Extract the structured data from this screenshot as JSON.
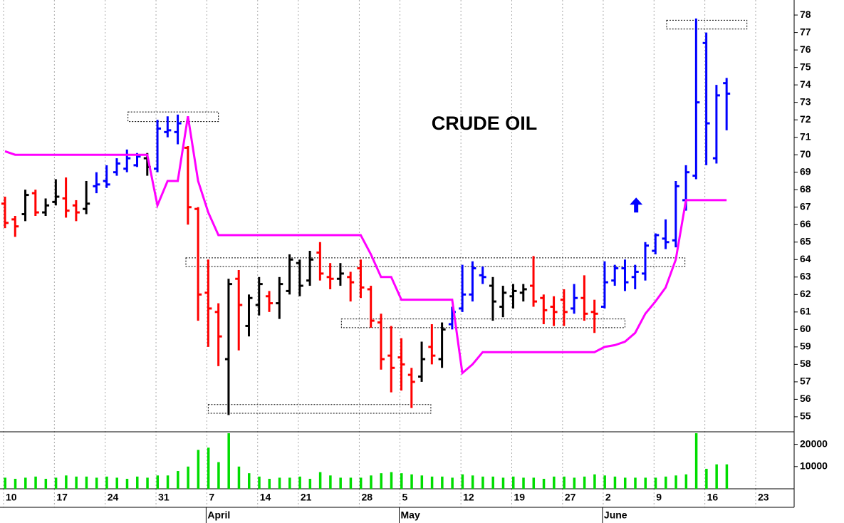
{
  "chart_data": {
    "type": "ohlc",
    "title": "CRUDE OIL",
    "categories": [
      "10",
      null,
      null,
      null,
      null,
      "17",
      null,
      null,
      null,
      null,
      "24",
      null,
      null,
      null,
      null,
      "31",
      null,
      null,
      null,
      null,
      "7",
      null,
      null,
      null,
      null,
      "14",
      null,
      null,
      null,
      "21",
      null,
      null,
      null,
      null,
      null,
      "28",
      null,
      null,
      null,
      "5",
      null,
      null,
      null,
      null,
      null,
      "12",
      null,
      null,
      null,
      null,
      "19",
      null,
      null,
      null,
      null,
      "27",
      null,
      null,
      null,
      "2",
      null,
      null,
      null,
      null,
      "9",
      null,
      null,
      null,
      null,
      "16",
      null,
      null,
      null,
      null,
      "23"
    ],
    "months": [
      null,
      null,
      null,
      null,
      null,
      null,
      null,
      null,
      null,
      null,
      null,
      null,
      null,
      null,
      null,
      null,
      null,
      null,
      null,
      null,
      "April",
      null,
      null,
      null,
      null,
      null,
      null,
      null,
      null,
      null,
      null,
      null,
      null,
      null,
      null,
      null,
      null,
      null,
      null,
      "May",
      null,
      null,
      null,
      null,
      null,
      null,
      null,
      null,
      null,
      null,
      null,
      null,
      null,
      null,
      null,
      null,
      null,
      null,
      null,
      "June",
      null,
      null,
      null,
      null,
      null,
      null,
      null,
      null,
      null,
      null,
      null,
      null,
      null,
      null,
      null
    ],
    "open": [
      67.2,
      66.3,
      66.6,
      67.8,
      66.7,
      67.3,
      67.5,
      67.1,
      66.9,
      68.2,
      68.5,
      69.0,
      69.2,
      69.4,
      69.8,
      69.2,
      71.3,
      71.3,
      70.4,
      66.9,
      62.1,
      61.0,
      58.3,
      62.9,
      60.2,
      61.4,
      61.9,
      61.5,
      62.2,
      63.8,
      62.8,
      64.4,
      63.0,
      62.9,
      63.0,
      63.5,
      62.3,
      60.4,
      58.5,
      58.4,
      57.4,
      57.3,
      59.0,
      58.3,
      60.3,
      61.2,
      62.0,
      63.1,
      62.5,
      61.3,
      61.9,
      62.1,
      62.5,
      61.8,
      61.3,
      61.7,
      61.2,
      61.8,
      61.0,
      61.3,
      62.8,
      63.5,
      63.0,
      63.2,
      64.5,
      65.2,
      65.1,
      67.4,
      68.8,
      76.4,
      69.8,
      74.1,
      null,
      null,
      null
    ],
    "high": [
      67.6,
      66.5,
      68.0,
      68.0,
      67.5,
      68.6,
      68.7,
      67.4,
      68.5,
      69.0,
      69.4,
      69.8,
      70.3,
      70.1,
      70.1,
      72.0,
      72.2,
      72.3,
      70.5,
      67.0,
      64.0,
      61.5,
      62.9,
      63.4,
      62.0,
      63.0,
      62.2,
      63.0,
      64.3,
      64.0,
      64.5,
      65.0,
      63.8,
      63.8,
      63.3,
      64.0,
      62.5,
      60.9,
      60.2,
      59.5,
      57.8,
      59.3,
      60.3,
      60.4,
      61.3,
      63.7,
      63.9,
      63.6,
      63.0,
      62.5,
      62.6,
      62.6,
      64.2,
      62.0,
      61.9,
      62.3,
      62.6,
      63.1,
      61.7,
      63.9,
      63.7,
      64.0,
      63.7,
      65.0,
      65.5,
      66.3,
      68.5,
      69.4,
      77.8,
      77.0,
      74.0,
      74.4,
      null,
      null,
      null
    ],
    "low": [
      65.8,
      65.3,
      66.2,
      66.5,
      66.5,
      67.1,
      66.4,
      66.2,
      66.6,
      67.8,
      68.1,
      68.8,
      69.0,
      69.3,
      68.8,
      69.0,
      71.0,
      70.6,
      66.0,
      60.5,
      59.0,
      57.9,
      55.1,
      58.8,
      59.6,
      60.8,
      61.0,
      60.6,
      62.0,
      61.9,
      62.5,
      62.8,
      62.3,
      62.5,
      61.6,
      61.8,
      60.1,
      57.7,
      56.4,
      56.5,
      55.5,
      57.0,
      58.0,
      57.8,
      60.0,
      61.0,
      61.6,
      62.6,
      60.5,
      60.7,
      61.2,
      61.6,
      61.3,
      60.3,
      60.2,
      60.2,
      60.9,
      60.5,
      59.8,
      61.2,
      62.5,
      62.2,
      62.3,
      62.8,
      64.3,
      64.6,
      64.7,
      66.8,
      68.6,
      69.4,
      69.5,
      71.4,
      null,
      null,
      null
    ],
    "close": [
      66.1,
      65.9,
      67.7,
      66.7,
      67.1,
      67.6,
      66.8,
      66.7,
      67.2,
      68.3,
      68.3,
      69.5,
      69.8,
      69.9,
      69.3,
      71.5,
      71.4,
      71.8,
      67.0,
      62.0,
      61.2,
      59.6,
      62.6,
      61.4,
      61.8,
      62.6,
      61.5,
      62.6,
      64.0,
      62.5,
      64.0,
      63.2,
      62.9,
      63.2,
      62.7,
      62.4,
      60.5,
      58.3,
      57.8,
      58.0,
      57.0,
      58.3,
      58.5,
      60.0,
      61.0,
      62.0,
      63.5,
      63.0,
      61.6,
      62.1,
      62.2,
      62.3,
      61.6,
      61.1,
      61.0,
      61.0,
      61.8,
      60.9,
      60.9,
      62.7,
      63.5,
      62.7,
      63.3,
      64.8,
      65.4,
      65.0,
      68.2,
      69.0,
      73.0,
      71.8,
      73.4,
      73.5,
      null,
      null,
      null
    ],
    "colors": [
      "#ff0000",
      "#ff0000",
      "#000000",
      "#ff0000",
      "#000000",
      "#000000",
      "#ff0000",
      "#ff0000",
      "#000000",
      "#0000ff",
      "#0000ff",
      "#0000ff",
      "#0000ff",
      "#0000ff",
      "#000000",
      "#0000ff",
      "#0000ff",
      "#0000ff",
      "#ff0000",
      "#ff0000",
      "#ff0000",
      "#ff0000",
      "#000000",
      "#ff0000",
      "#000000",
      "#000000",
      "#ff0000",
      "#000000",
      "#000000",
      "#000000",
      "#000000",
      "#ff0000",
      "#ff0000",
      "#000000",
      "#ff0000",
      "#ff0000",
      "#ff0000",
      "#ff0000",
      "#ff0000",
      "#ff0000",
      "#ff0000",
      "#000000",
      "#ff0000",
      "#000000",
      "#0000ff",
      "#0000ff",
      "#0000ff",
      "#0000ff",
      "#000000",
      "#000000",
      "#000000",
      "#000000",
      "#ff0000",
      "#ff0000",
      "#ff0000",
      "#ff0000",
      "#0000ff",
      "#ff0000",
      "#ff0000",
      "#0000ff",
      "#0000ff",
      "#0000ff",
      "#0000ff",
      "#0000ff",
      "#0000ff",
      "#0000ff",
      "#0000ff",
      "#0000ff",
      "#0000ff",
      "#0000ff",
      "#0000ff",
      "#0000ff",
      null,
      null,
      null
    ],
    "stop": {
      "color": "#ff00ff",
      "values": [
        70.2,
        70.0,
        70.0,
        70.0,
        70.0,
        70.0,
        70.0,
        70.0,
        70.0,
        70.0,
        70.0,
        70.0,
        70.0,
        70.0,
        70.0,
        67.1,
        68.5,
        68.5,
        72.2,
        68.5,
        66.7,
        65.4,
        65.4,
        65.4,
        65.4,
        65.4,
        65.4,
        65.4,
        65.4,
        65.4,
        65.4,
        65.4,
        65.4,
        65.4,
        65.4,
        65.4,
        64.3,
        63.0,
        63.0,
        61.7,
        61.7,
        61.7,
        61.7,
        61.7,
        61.7,
        57.5,
        58.0,
        58.7,
        58.7,
        58.7,
        58.7,
        58.7,
        58.7,
        58.7,
        58.7,
        58.7,
        58.7,
        58.7,
        58.7,
        59.0,
        59.1,
        59.3,
        59.8,
        60.9,
        61.6,
        62.4,
        64.0,
        67.4,
        67.4,
        67.4,
        67.4,
        67.4,
        null,
        null,
        null
      ]
    },
    "volume": {
      "color": "#00dd00",
      "ylim": [
        0,
        25000
      ],
      "yticks": [
        10000,
        20000
      ],
      "values": [
        5000,
        4500,
        5000,
        5500,
        4500,
        5000,
        6000,
        5500,
        5500,
        5000,
        5500,
        5000,
        4500,
        5500,
        5000,
        6000,
        6000,
        8000,
        10000,
        17500,
        18500,
        12000,
        25000,
        10000,
        7000,
        5500,
        4500,
        5000,
        5000,
        5500,
        4500,
        7500,
        6000,
        5000,
        5000,
        5000,
        6000,
        7000,
        7500,
        7000,
        6500,
        6000,
        5500,
        5500,
        5000,
        6500,
        6000,
        5500,
        5500,
        5000,
        5500,
        5000,
        5000,
        4500,
        5500,
        5500,
        5000,
        5500,
        6500,
        6000,
        5500,
        5000,
        5000,
        5000,
        5000,
        5500,
        6000,
        6500,
        25000,
        9000,
        11000,
        11000,
        null,
        null,
        null
      ]
    },
    "zones": [
      {
        "x0": 12.1,
        "x1": 21.0,
        "y0": 71.9,
        "y1": 72.45
      },
      {
        "x0": 17.8,
        "x1": 66.9,
        "y0": 63.6,
        "y1": 64.1
      },
      {
        "x0": 33.1,
        "x1": 61.0,
        "y0": 60.1,
        "y1": 60.6
      },
      {
        "x0": 20.0,
        "x1": 41.9,
        "y0": 55.2,
        "y1": 55.7
      },
      {
        "x0": 65.1,
        "x1": 73.0,
        "y0": 77.2,
        "y1": 77.7
      }
    ],
    "arrow": {
      "x": 62.1,
      "y": 67.1,
      "color": "#0000ff"
    },
    "ylim": [
      54.14,
      78.86
    ],
    "yticks": [
      55,
      56,
      57,
      58,
      59,
      60,
      61,
      62,
      63,
      64,
      65,
      66,
      67,
      68,
      69,
      70,
      71,
      72,
      73,
      74,
      75,
      76,
      77,
      78
    ],
    "grid": true
  }
}
